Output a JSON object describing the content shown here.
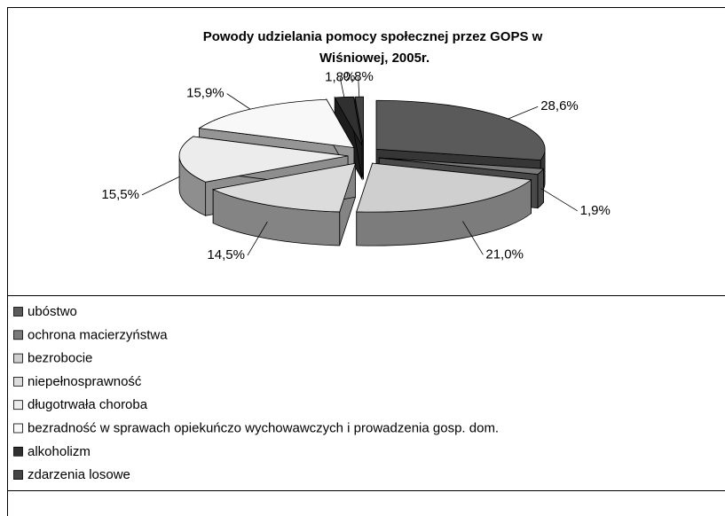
{
  "chart_data": {
    "type": "pie3d",
    "title": "Powody udzielania pomocy społecznej przez GOPS w Wiśniowej, 2005r.",
    "categories": [
      "ubóstwo",
      "ochrona macierzyństwa",
      "bezrobocie",
      "niepełnosprawność",
      "długotrwała choroba",
      "bezradność w sprawach opiekuńczo wychowawczych i prowadzenia gosp. dom.",
      "alkoholizm",
      "zdarzenia losowe"
    ],
    "values": [
      28.6,
      1.9,
      21.0,
      14.5,
      15.5,
      15.9,
      1.8,
      0.8
    ],
    "value_labels": [
      "28,6%",
      "1,9%",
      "21,0%",
      "14,5%",
      "15,5%",
      "15,9%",
      "1,8%",
      "0,8%"
    ],
    "colors": [
      "#5a5a5a",
      "#7a7a7a",
      "#cfcfcf",
      "#dcdcdc",
      "#ececec",
      "#f8f8f8",
      "#303030",
      "#444444"
    ],
    "legend": "bottom"
  }
}
